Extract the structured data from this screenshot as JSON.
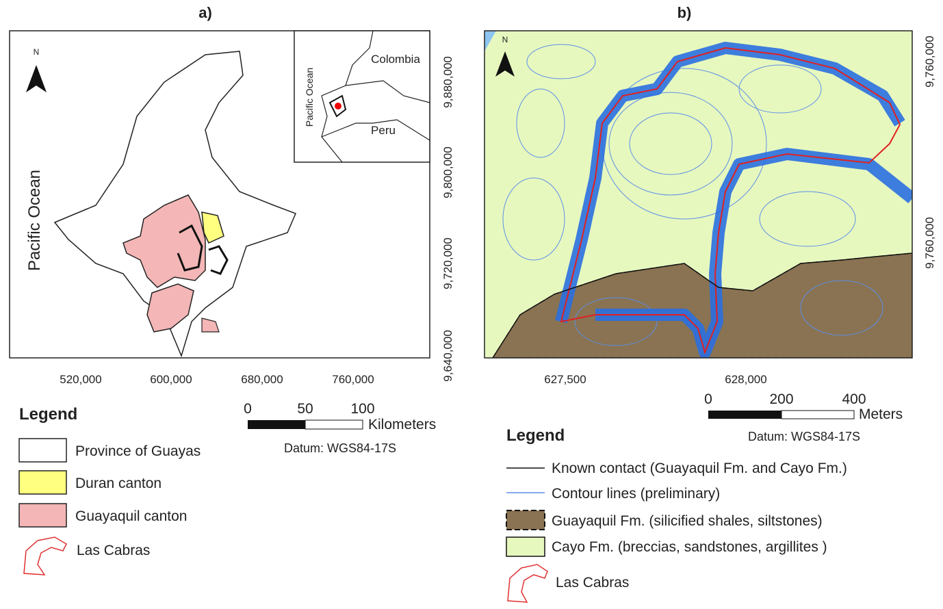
{
  "panel_a": {
    "label": "a)",
    "ocean_label": "Pacific Ocean",
    "north": "N",
    "x_labels": [
      "520,000",
      "600,000",
      "680,000",
      "760,000"
    ],
    "y_labels": [
      "9,880,000",
      "9,800,000",
      "9,720,000",
      "9,640,000"
    ],
    "inset": {
      "colombia": "Colombia",
      "ocean": "Pacific Ocean",
      "peru": "Peru"
    },
    "scale": {
      "ticks": [
        0,
        50,
        100
      ],
      "unit": "Kilometers"
    },
    "datum": "Datum: WGS84-17S",
    "legend": {
      "title": "Legend",
      "items": [
        "Province of Guayas",
        "Duran canton",
        "Guayaquil canton",
        "Las Cabras"
      ]
    }
  },
  "panel_b": {
    "label": "b)",
    "north": "N",
    "x_labels": [
      "627,500",
      "628,000"
    ],
    "y_labels": [
      "9,760,000",
      "9,760,000"
    ],
    "scale": {
      "ticks": [
        0,
        200,
        400
      ],
      "unit": "Meters"
    },
    "datum": "Datum: WGS84-17S",
    "legend": {
      "title": "Legend",
      "items": [
        "Known contact (Guayaquil Fm. and Cayo Fm.)",
        "Contour  lines (preliminary)",
        "Guayaquil Fm. (silicified shales, siltstones)",
        "Cayo Fm. (breccias, sandstones, argillites )",
        "Las Cabras"
      ]
    }
  }
}
